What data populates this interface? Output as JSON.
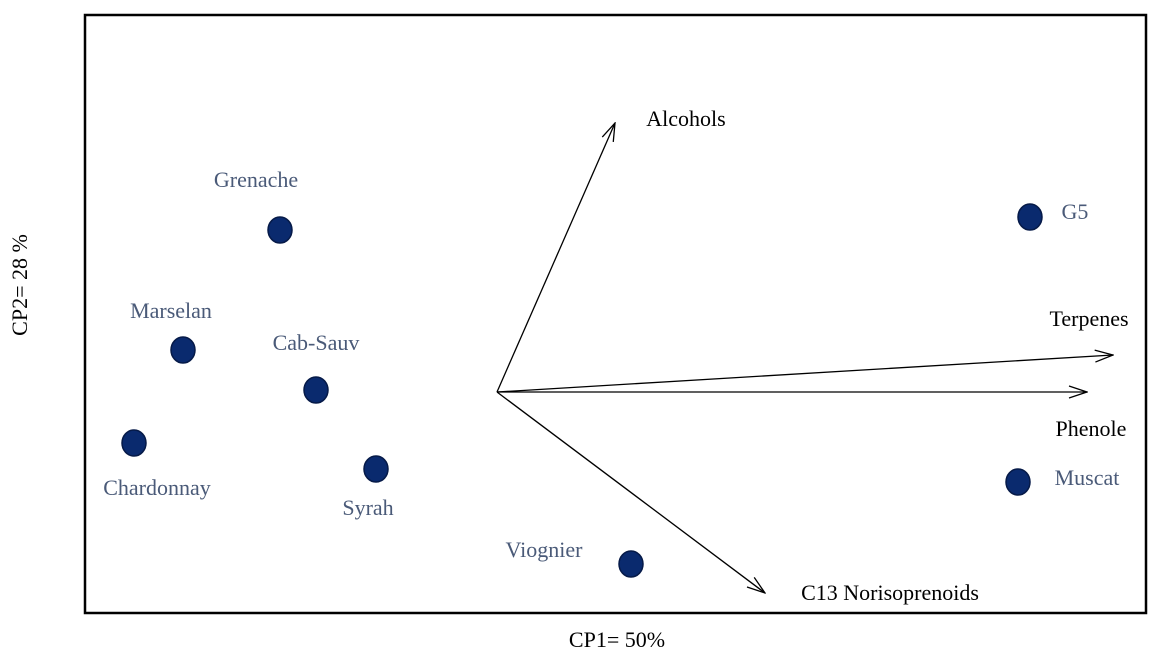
{
  "x_label": "CP1= 50%",
  "y_label": "CP2= 28 %",
  "samples": [
    "Grenache",
    "Marselan",
    "Cab-Sauv",
    "Chardonnay",
    "Syrah",
    "Viognier",
    "G5",
    "Muscat"
  ],
  "variables": [
    "Alcohols",
    "Terpenes",
    "Phenole",
    "C13 Norisoprenoids"
  ]
}
